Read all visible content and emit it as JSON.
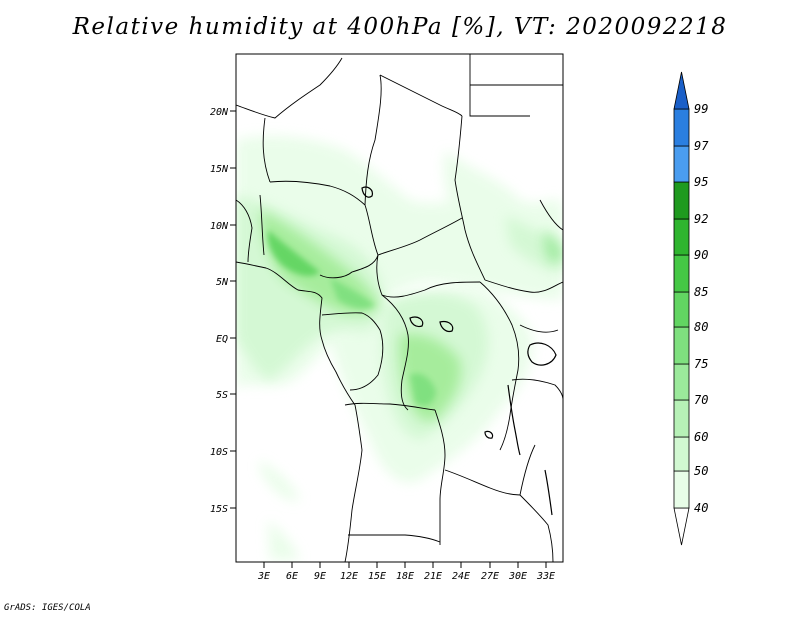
{
  "title": "Relative humidity at 400hPa [%], VT: 2020092218",
  "credit": "GrADS: IGES/COLA",
  "map": {
    "lat_labels": [
      "20N",
      "15N",
      "10N",
      "5N",
      "EQ",
      "5S",
      "10S",
      "15S"
    ],
    "lon_labels": [
      "3E",
      "6E",
      "9E",
      "12E",
      "15E",
      "18E",
      "21E",
      "24E",
      "27E",
      "30E",
      "33E"
    ]
  },
  "colorbar": {
    "labels": [
      "40",
      "50",
      "60",
      "70",
      "75",
      "80",
      "85",
      "90",
      "92",
      "95",
      "97",
      "99"
    ],
    "colors": [
      "#ffffff",
      "#e8fde8",
      "#d2f8d2",
      "#b7f1b7",
      "#9be99b",
      "#7fe07f",
      "#62d562",
      "#45c845",
      "#2fb52f",
      "#1f9a1f",
      "#4a9df0",
      "#2b7fe0",
      "#1a5fc8"
    ]
  },
  "chart_data": {
    "type": "heatmap",
    "title": "Relative humidity at 400hPa [%], VT: 2020092218",
    "variable": "Relative humidity at 400hPa",
    "units": "%",
    "valid_time": "2020092218",
    "x_ticks": [
      "3E",
      "6E",
      "9E",
      "12E",
      "15E",
      "18E",
      "21E",
      "24E",
      "27E",
      "30E",
      "33E"
    ],
    "y_ticks": [
      "20N",
      "15N",
      "10N",
      "5N",
      "EQ",
      "5S",
      "10S",
      "15S"
    ],
    "xlim": [
      0,
      34.5
    ],
    "ylim": [
      -20,
      24
    ],
    "levels": [
      40,
      50,
      60,
      70,
      75,
      80,
      85,
      90,
      92,
      95,
      97,
      99
    ],
    "legend_position": "right"
  }
}
